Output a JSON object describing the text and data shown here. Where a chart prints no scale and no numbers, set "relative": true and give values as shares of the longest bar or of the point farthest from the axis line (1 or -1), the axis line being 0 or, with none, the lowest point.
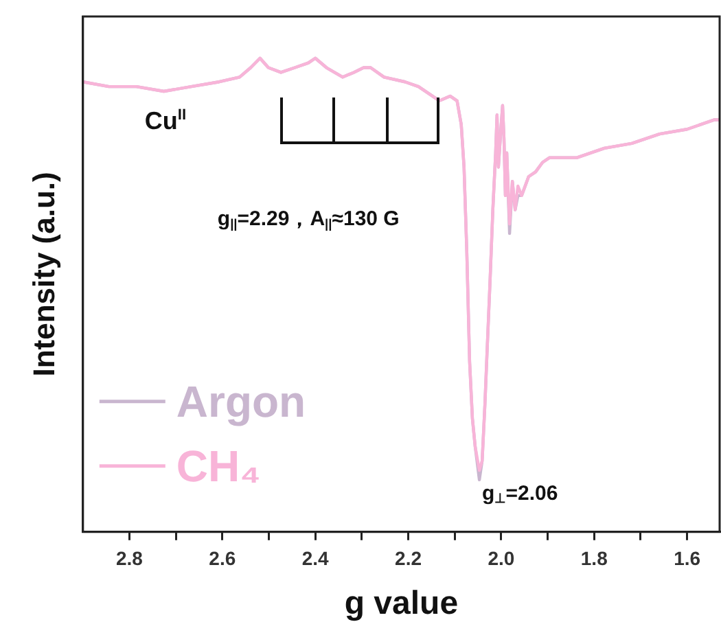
{
  "chart_data": {
    "type": "line",
    "xlabel": "g value",
    "ylabel": "Intensity (a.u.)",
    "relative": true,
    "xlim": [
      2.9,
      1.53
    ],
    "xticks": [
      2.8,
      {
        "value": 2.7,
        "label": null
      },
      2.6,
      {
        "value": 2.5,
        "label": null
      },
      2.4,
      {
        "value": 2.3,
        "label": null
      },
      2.2,
      {
        "value": 2.1,
        "label": null
      },
      "2.0",
      {
        "value": 1.9,
        "label": null
      },
      1.8,
      {
        "value": 1.7,
        "label": null
      },
      1.6
    ],
    "x": [
      2.9,
      2.844,
      2.785,
      2.726,
      2.667,
      2.607,
      2.563,
      2.539,
      2.519,
      2.501,
      2.474,
      2.444,
      2.415,
      2.4,
      2.376,
      2.341,
      2.317,
      2.296,
      2.281,
      2.252,
      2.207,
      2.178,
      2.148,
      2.133,
      2.11,
      2.095,
      2.086,
      2.08,
      2.074,
      2.068,
      2.062,
      2.056,
      2.047,
      2.041,
      2.035,
      2.03,
      2.024,
      2.018,
      2.012,
      2.009,
      2.006,
      2.0,
      1.997,
      1.994,
      1.991,
      1.988,
      1.982,
      1.976,
      1.97,
      1.964,
      1.956,
      1.941,
      1.926,
      1.911,
      1.896,
      1.837,
      1.778,
      1.719,
      1.659,
      1.6,
      1.541,
      1.53
    ],
    "series": [
      {
        "name": "Argon",
        "color": "#c9b6cf",
        "values": [
          0.95,
          0.94,
          0.94,
          0.93,
          0.94,
          0.95,
          0.96,
          0.98,
          1.0,
          0.98,
          0.97,
          0.98,
          0.99,
          1.0,
          0.98,
          0.96,
          0.97,
          0.98,
          0.98,
          0.96,
          0.95,
          0.94,
          0.92,
          0.91,
          0.92,
          0.91,
          0.86,
          0.77,
          0.59,
          0.36,
          0.24,
          0.18,
          0.11,
          0.15,
          0.27,
          0.39,
          0.53,
          0.68,
          0.8,
          0.88,
          0.77,
          0.86,
          0.9,
          0.83,
          0.71,
          0.8,
          0.63,
          0.74,
          0.68,
          0.71,
          0.71,
          0.75,
          0.76,
          0.78,
          0.79,
          0.79,
          0.81,
          0.82,
          0.84,
          0.85,
          0.87,
          0.87
        ]
      },
      {
        "name": "CH₄",
        "color": "#f8b4d8",
        "values": [
          0.95,
          0.94,
          0.94,
          0.93,
          0.94,
          0.95,
          0.96,
          0.98,
          1.0,
          0.98,
          0.97,
          0.98,
          0.99,
          1.0,
          0.98,
          0.96,
          0.97,
          0.98,
          0.98,
          0.96,
          0.95,
          0.94,
          0.92,
          0.91,
          0.92,
          0.91,
          0.86,
          0.77,
          0.59,
          0.36,
          0.24,
          0.18,
          0.13,
          0.15,
          0.27,
          0.39,
          0.53,
          0.68,
          0.8,
          0.88,
          0.77,
          0.86,
          0.9,
          0.83,
          0.71,
          0.8,
          0.65,
          0.74,
          0.68,
          0.73,
          0.71,
          0.75,
          0.76,
          0.78,
          0.79,
          0.79,
          0.81,
          0.82,
          0.84,
          0.85,
          0.87,
          0.87
        ]
      }
    ],
    "legend": "bottom left",
    "annotations": [
      "Cu$^{II}$",
      "g$_{||}$=2.29，A$_{||}$≈130 G",
      {
        "text": "g$_{⊥}$=2.06",
        "x": 2.047,
        "y": 0.12
      }
    ]
  }
}
